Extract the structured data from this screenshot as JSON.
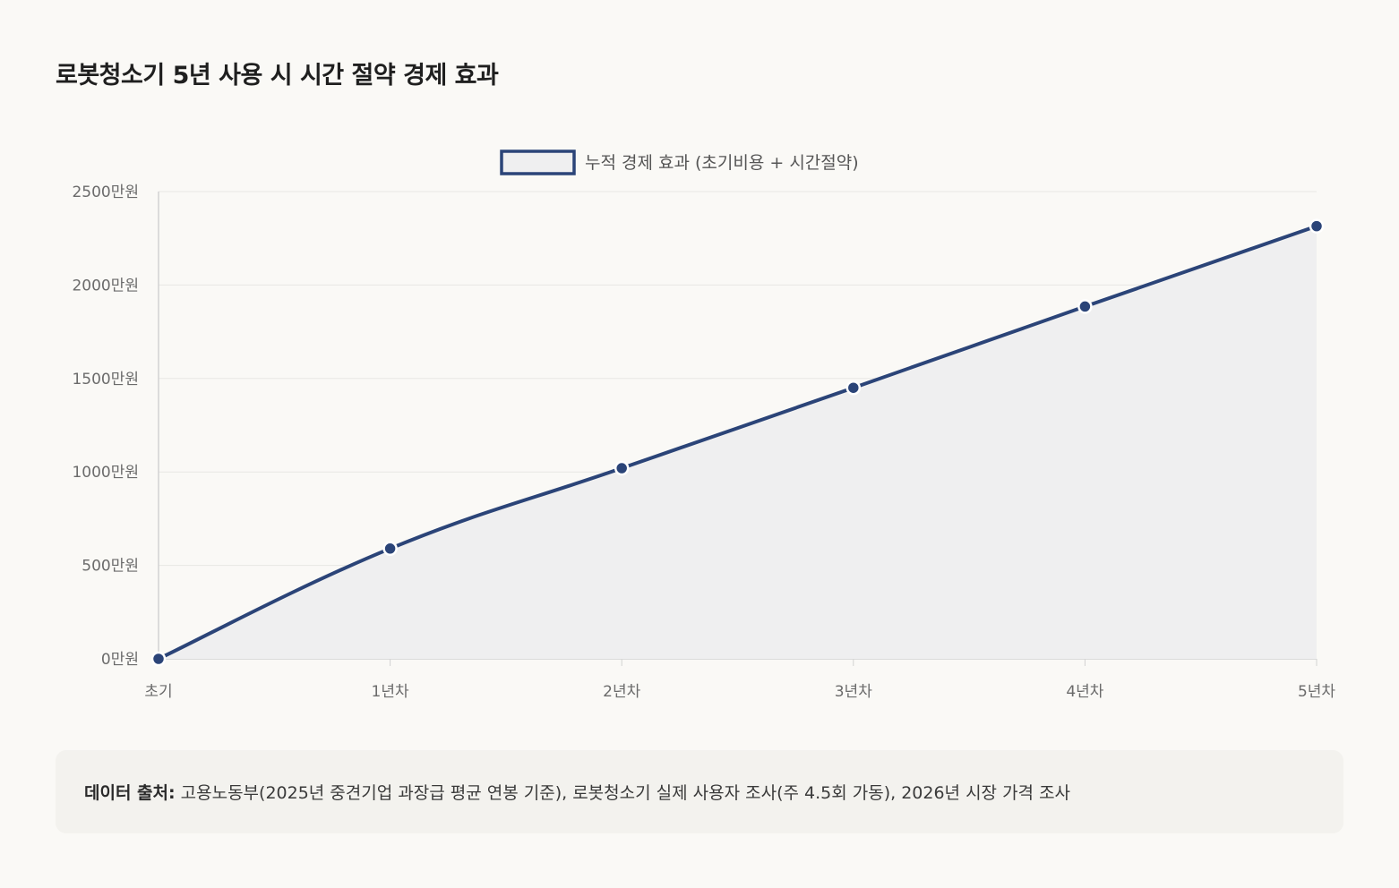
{
  "page": {
    "title": "로봇청소기 5년 사용 시 시간 절약 경제 효과"
  },
  "chart_data": {
    "type": "area",
    "categories": [
      "초기",
      "1년차",
      "2년차",
      "3년차",
      "4년차",
      "5년차"
    ],
    "series": [
      {
        "name": "누적 경제 효과 (초기비용 + 시간절약)",
        "values": [
          0,
          590,
          1020,
          1450,
          1885,
          2315
        ],
        "color": "#2b4478",
        "fill": "#efeff0"
      }
    ],
    "ylim": [
      0,
      2500
    ],
    "yticks": [
      0,
      500,
      1000,
      1500,
      2000,
      2500
    ],
    "ytick_labels": [
      "0만원",
      "500만원",
      "1000만원",
      "1500만원",
      "2000만원",
      "2500만원"
    ],
    "xlabel": "",
    "ylabel": "",
    "grid": true,
    "legend_position": "top-center"
  },
  "source": {
    "label": "데이터 출처:",
    "text": "고용노동부(2025년 중견기업 과장급 평균 연봉 기준), 로봇청소기 실제 사용자 조사(주 4.5회 가동), 2026년 시장 가격 조사"
  }
}
